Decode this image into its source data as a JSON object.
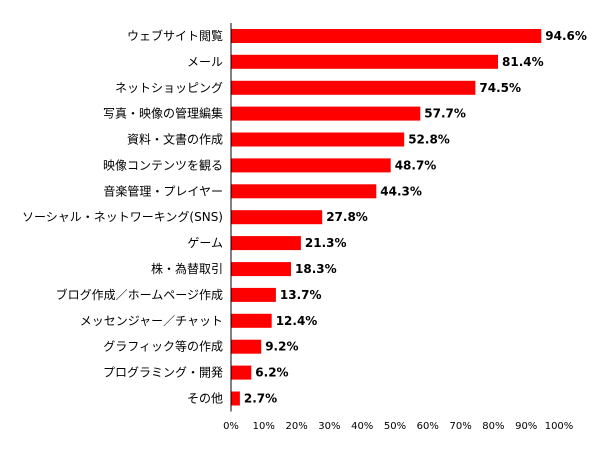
{
  "chart_data": {
    "type": "bar",
    "orientation": "horizontal",
    "title": "",
    "xlabel": "",
    "ylabel": "",
    "categories": [
      "ウェブサイト閲覧",
      "メール",
      "ネットショッピング",
      "写真・映像の管理編集",
      "資料・文書の作成",
      "映像コンテンツを観る",
      "音楽管理・プレイヤー",
      "ソーシャル・ネットワーキング(SNS)",
      "ゲーム",
      "株・為替取引",
      "ブログ作成／ホームページ作成",
      "メッセンジャー／チャット",
      "グラフィック等の作成",
      "プログラミング・開発",
      "その他"
    ],
    "values": [
      94.6,
      81.4,
      74.5,
      57.7,
      52.8,
      48.7,
      44.3,
      27.8,
      21.3,
      18.3,
      13.7,
      12.4,
      9.2,
      6.2,
      2.7
    ],
    "value_labels": [
      "94.6%",
      "81.4%",
      "74.5%",
      "57.7%",
      "52.8%",
      "48.7%",
      "44.3%",
      "27.8%",
      "21.3%",
      "18.3%",
      "13.7%",
      "12.4%",
      "9.2%",
      "6.2%",
      "2.7%"
    ],
    "xlim": [
      0,
      100
    ],
    "ticks": [
      0,
      10,
      20,
      30,
      40,
      50,
      60,
      70,
      80,
      90,
      100
    ],
    "tick_labels": [
      "0%",
      "10%",
      "20%",
      "30%",
      "40%",
      "50%",
      "60%",
      "70%",
      "80%",
      "90%",
      "100%"
    ],
    "grid": false,
    "legend": "none",
    "bar_color": "#ff0000",
    "axis_color": "#000000"
  }
}
